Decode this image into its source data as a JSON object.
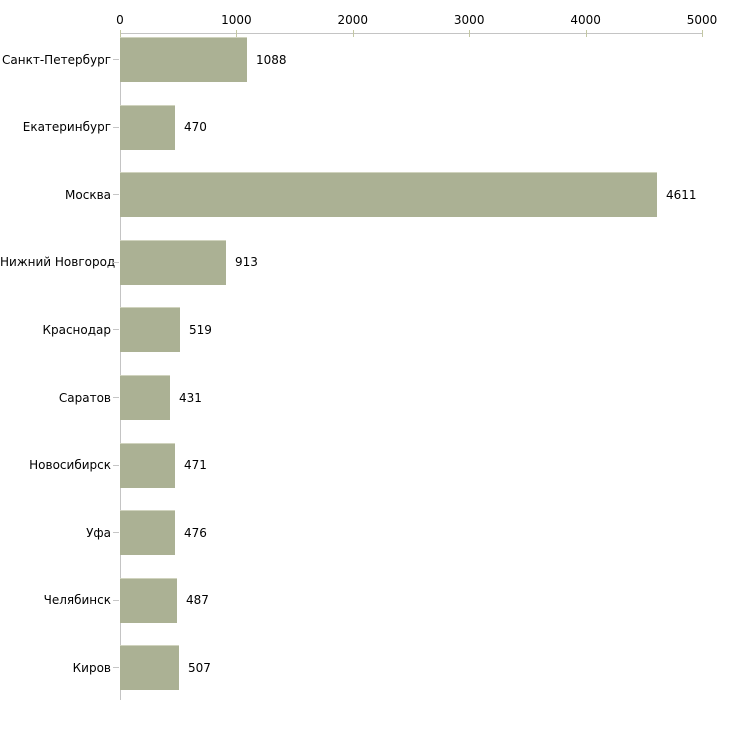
{
  "chart_data": {
    "type": "bar",
    "orientation": "horizontal",
    "title": "",
    "xlabel": "",
    "ylabel": "",
    "categories": [
      "Санкт-Петербург",
      "Екатеринбург",
      "Москва",
      "Нижний Новгород",
      "Краснодар",
      "Саратов",
      "Новосибирск",
      "Уфа",
      "Челябинск",
      "Киров"
    ],
    "values": [
      1088,
      470,
      4611,
      913,
      519,
      431,
      471,
      476,
      487,
      507
    ],
    "value_labels": [
      "1088",
      "470",
      "4611",
      "913",
      "519",
      "431",
      "471",
      "476",
      "487",
      "507"
    ],
    "x_ticks": [
      0,
      1000,
      2000,
      3000,
      4000,
      5000
    ],
    "x_tick_labels": [
      "0",
      "1000",
      "2000",
      "3000",
      "4000",
      "5000"
    ],
    "xlim": [
      0,
      5000
    ],
    "axis_position": "top",
    "grid": false,
    "legend": false,
    "value_labels_shown": true,
    "colors": {
      "bar": "#abb194",
      "bar_edge": "#d0d3be",
      "axis": "#c4c4c4",
      "xtick": "#c3c7a3",
      "ytick": "#c6c6c6",
      "text": "#000000",
      "background": "#ffffff"
    }
  }
}
